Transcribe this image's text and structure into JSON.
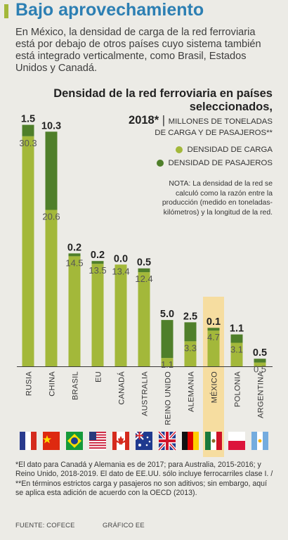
{
  "header": {
    "title": "Bajo aprovechamiento",
    "intro": "En México, la densidad de carga de la red ferroviaria está por debajo de otros países cuyo sistema también está integrado verticalmente, como Brasil, Estados Unidos y Canadá."
  },
  "chart_data": {
    "type": "bar",
    "stacked": true,
    "title": "Densidad de la red ferroviaria en países seleccionados,",
    "title_year": "2018*",
    "unit_line1": "MILLONES DE TONELADAS",
    "unit_line2": "DE CARGA Y DE PASAJEROS**",
    "categories": [
      "RUSIA",
      "CHINA",
      "BRASIL",
      "EU",
      "CANADÁ",
      "AUSTRALIA",
      "REINO UNIDO",
      "ALEMANIA",
      "MÉXICO",
      "POLONIA",
      "ARGENTINA"
    ],
    "highlight": "MÉXICO",
    "series": [
      {
        "name": "DENSIDAD DE CARGA",
        "color": "#a3b83a",
        "values": [
          30.3,
          20.6,
          14.5,
          13.5,
          13.4,
          12.4,
          1.1,
          3.3,
          4.7,
          3.1,
          0.5
        ]
      },
      {
        "name": "DENSIDAD DE PASAJEROS",
        "color": "#4f7f2a",
        "values": [
          1.5,
          10.3,
          0.2,
          0.2,
          0.0,
          0.5,
          5.0,
          2.5,
          0.1,
          1.1,
          0.5
        ]
      }
    ],
    "ylim": [
      0,
      32
    ],
    "note": "NOTA: La densidad de la red se calculó como la razón entre la producción (medido en toneladas-kilómetros) y la longitud de la red."
  },
  "flags": [
    "russia-flag",
    "china-flag",
    "brazil-flag",
    "usa-flag",
    "canada-flag",
    "australia-flag",
    "uk-flag",
    "germany-flag",
    "mexico-flag",
    "poland-flag",
    "argentina-flag"
  ],
  "footer": {
    "footnote": "*El dato para Canadá y Alemania es de 2017; para Australia, 2015-2016; y Reino Unido, 2018-2019. El dato de EE.UU. sólo incluye ferrocarriles clase I. / **En términos estrictos carga y pasajeros no son aditivos; sin embargo, aquí se aplica esta adición de acuerdo con la OECD (2013).",
    "source": "FUENTE: COFECE",
    "credit": "GRÁFICO EE"
  },
  "colors": {
    "cargo": "#a3b83a",
    "passenger": "#4f7f2a",
    "highlight": "#f6dda0",
    "title": "#2c7fb3",
    "background": "#ecebe6"
  }
}
